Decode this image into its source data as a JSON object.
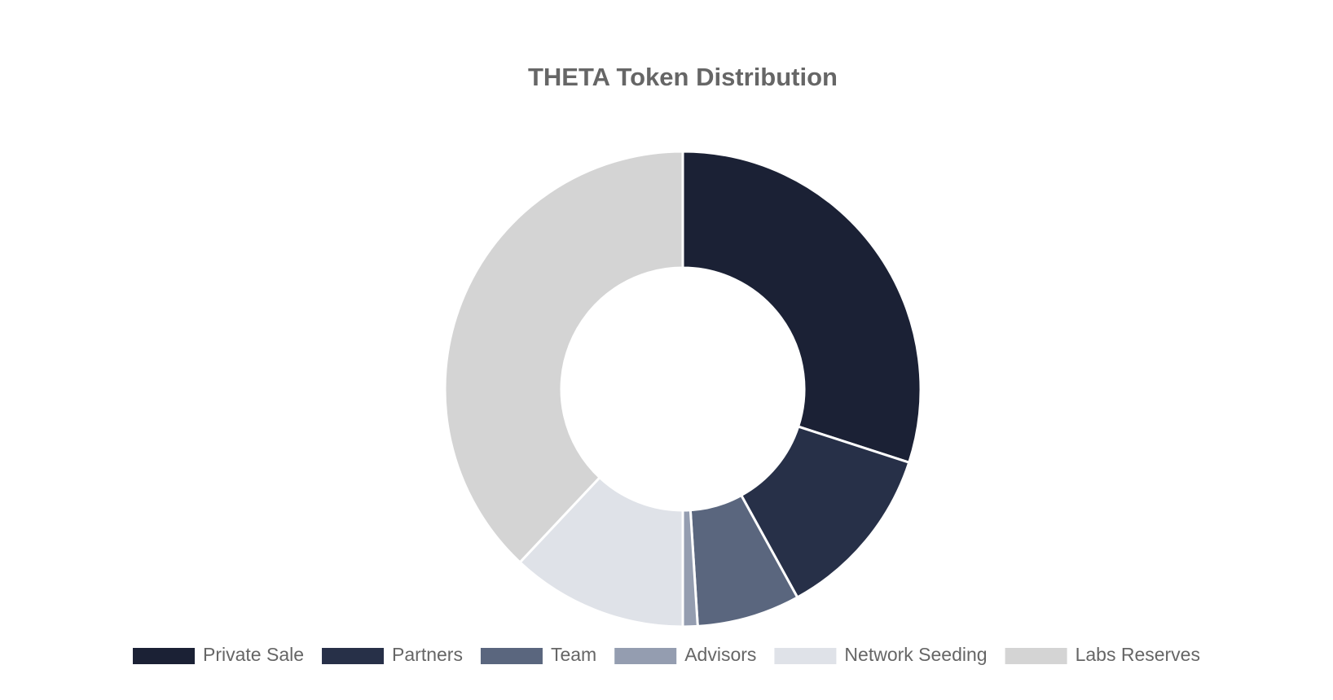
{
  "chart_data": {
    "type": "doughnut",
    "title": "THETA Token Distribution",
    "categories": [
      "Private Sale",
      "Partners",
      "Team",
      "Advisors",
      "Network Seeding",
      "Labs Reserves"
    ],
    "values": [
      30,
      12,
      7,
      1,
      12,
      38
    ],
    "colors": [
      "#1b2135",
      "#273048",
      "#5a667e",
      "#949db0",
      "#dfe2e8",
      "#d4d4d4"
    ],
    "legend": "bottom"
  }
}
